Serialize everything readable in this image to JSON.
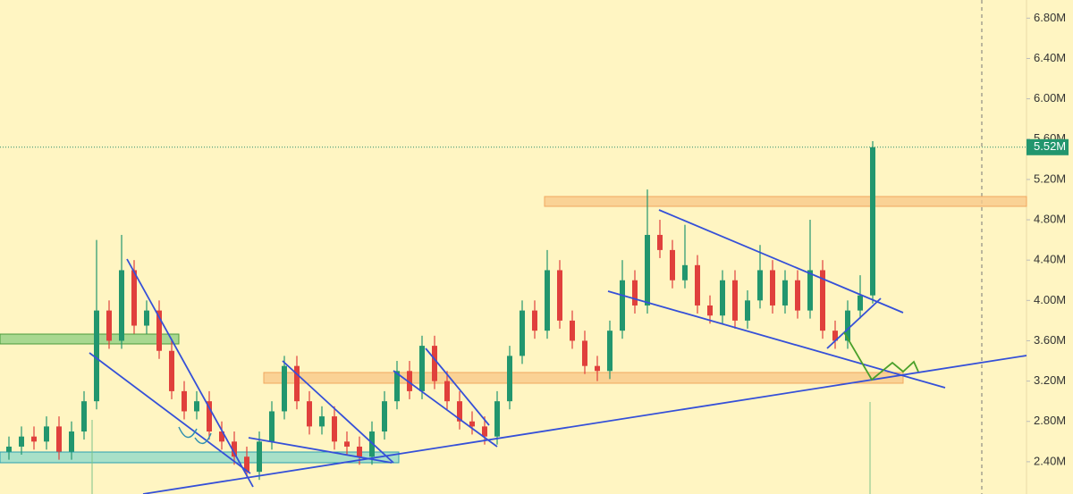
{
  "chart_data": {
    "type": "candlestick",
    "up_color": "#22966e",
    "down_color": "#e0403c",
    "ylim": [
      2.08,
      6.98
    ],
    "yticks": [
      {
        "value": 2.4,
        "label": "2.40M"
      },
      {
        "value": 2.8,
        "label": "2.80M"
      },
      {
        "value": 3.2,
        "label": "3.20M"
      },
      {
        "value": 3.6,
        "label": "3.60M"
      },
      {
        "value": 4.0,
        "label": "4.00M"
      },
      {
        "value": 4.4,
        "label": "4.40M"
      },
      {
        "value": 4.8,
        "label": "4.80M"
      },
      {
        "value": 5.2,
        "label": "5.20M"
      },
      {
        "value": 5.6,
        "label": "5.60M"
      },
      {
        "value": 6.0,
        "label": "6.00M"
      },
      {
        "value": 6.4,
        "label": "6.40M"
      },
      {
        "value": 6.8,
        "label": "6.80M"
      }
    ],
    "last_price": {
      "value": 5.52,
      "label": "5.52M"
    },
    "open": [
      2.5,
      2.55,
      2.65,
      2.6,
      2.75,
      2.5,
      2.7,
      3.0,
      3.9,
      3.6,
      4.3,
      3.75,
      3.9,
      3.5,
      3.1,
      2.9,
      3.0,
      2.7,
      2.6,
      2.45,
      2.3,
      2.6,
      2.9,
      3.35,
      3.0,
      2.75,
      2.85,
      2.6,
      2.55,
      2.45,
      2.7,
      3.0,
      3.3,
      3.1,
      3.55,
      3.2,
      3.0,
      2.8,
      2.75,
      2.65,
      3.0,
      3.45,
      3.9,
      3.7,
      4.3,
      3.8,
      3.6,
      3.35,
      3.3,
      3.7,
      4.2,
      3.95,
      4.65,
      4.5,
      4.2,
      4.35,
      3.95,
      3.85,
      4.2,
      3.8,
      4.0,
      4.3,
      3.95,
      4.2,
      3.9,
      4.3,
      3.7,
      3.6,
      3.9,
      4.05
    ],
    "high": [
      2.65,
      2.75,
      2.75,
      2.85,
      2.85,
      2.8,
      3.1,
      4.6,
      4.0,
      4.65,
      4.4,
      4.0,
      4.0,
      3.6,
      3.2,
      3.1,
      3.1,
      2.8,
      2.7,
      2.55,
      2.7,
      3.0,
      3.45,
      3.45,
      3.1,
      2.95,
      2.95,
      2.7,
      2.65,
      2.8,
      3.1,
      3.4,
      3.4,
      3.65,
      3.65,
      3.3,
      3.1,
      2.9,
      2.85,
      3.1,
      3.55,
      4.0,
      4.0,
      4.5,
      4.4,
      3.9,
      3.7,
      3.45,
      3.8,
      4.4,
      4.3,
      5.1,
      4.8,
      4.6,
      4.75,
      4.45,
      4.05,
      4.3,
      4.3,
      4.1,
      4.55,
      4.4,
      4.3,
      4.3,
      4.8,
      4.4,
      3.8,
      4.0,
      4.25,
      5.58
    ],
    "low": [
      2.42,
      2.47,
      2.52,
      2.52,
      2.42,
      2.42,
      2.62,
      2.92,
      3.52,
      3.52,
      3.67,
      3.67,
      3.42,
      3.02,
      2.82,
      2.82,
      2.62,
      2.52,
      2.37,
      2.25,
      2.22,
      2.52,
      2.82,
      2.92,
      2.67,
      2.67,
      2.52,
      2.47,
      2.37,
      2.37,
      2.62,
      2.92,
      3.02,
      3.02,
      3.12,
      2.92,
      2.72,
      2.67,
      2.57,
      2.57,
      2.92,
      3.37,
      3.62,
      3.62,
      3.72,
      3.52,
      3.27,
      3.2,
      3.22,
      3.62,
      3.87,
      3.87,
      4.42,
      4.12,
      4.12,
      3.87,
      3.77,
      3.77,
      3.72,
      3.72,
      3.92,
      3.87,
      3.87,
      3.82,
      3.82,
      3.62,
      3.52,
      3.52,
      3.82,
      3.97
    ],
    "close": [
      2.55,
      2.65,
      2.6,
      2.75,
      2.5,
      2.7,
      3.0,
      3.9,
      3.6,
      4.3,
      3.75,
      3.9,
      3.5,
      3.1,
      2.9,
      3.0,
      2.7,
      2.6,
      2.45,
      2.3,
      2.6,
      2.9,
      3.35,
      3.0,
      2.75,
      2.85,
      2.6,
      2.55,
      2.45,
      2.7,
      3.0,
      3.3,
      3.1,
      3.55,
      3.2,
      3.0,
      2.8,
      2.75,
      2.65,
      3.0,
      3.45,
      3.9,
      3.7,
      4.3,
      3.8,
      3.6,
      3.35,
      3.3,
      3.7,
      4.2,
      3.95,
      4.65,
      4.5,
      4.2,
      4.35,
      3.95,
      3.85,
      4.2,
      3.8,
      4.0,
      4.3,
      3.95,
      4.2,
      3.9,
      4.3,
      3.7,
      3.6,
      3.9,
      4.05,
      5.52
    ]
  }
}
